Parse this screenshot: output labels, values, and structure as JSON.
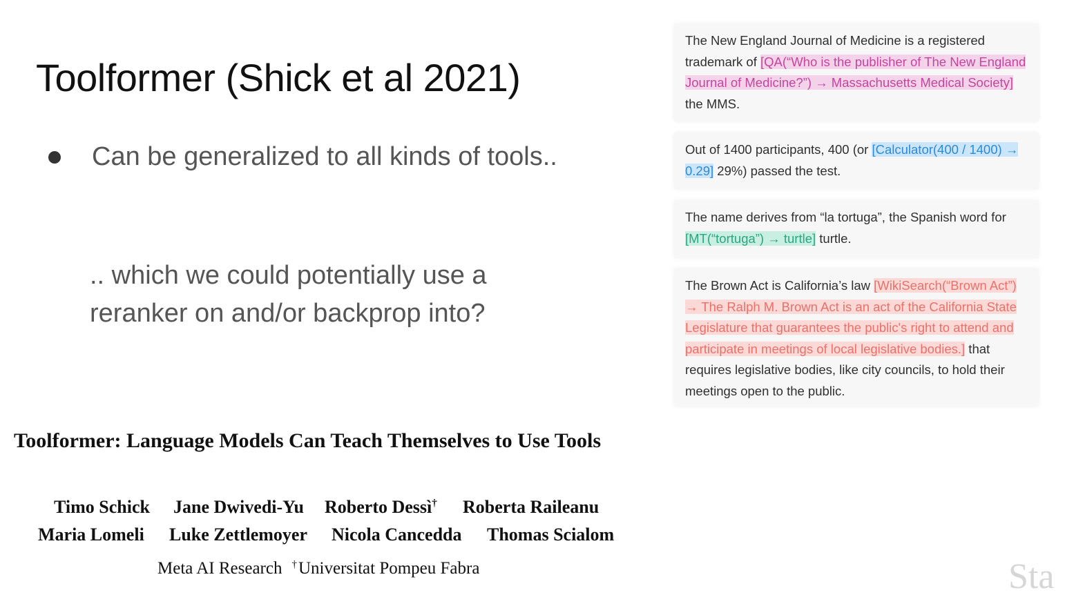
{
  "slide": {
    "title": "Toolformer (Shick et al 2021)",
    "bullet": "Can be generalized to all kinds of tools..",
    "followup_line_1": ".. which we could potentially use a",
    "followup_line_2": "reranker on and/or backprop into?"
  },
  "paper": {
    "title": "Toolformer: Language Models Can Teach Themselves to Use Tools",
    "authors_row_1": [
      "Timo Schick",
      "Jane Dwivedi-Yu",
      "Roberto Dessì",
      "Roberta Raileanu"
    ],
    "authors_row_2": [
      "Maria Lomeli",
      "Luke Zettlemoyer",
      "Nicola Cancedda",
      "Thomas Scialom"
    ],
    "dagger": "†",
    "affiliation_1": "Meta AI Research",
    "affiliation_2": "Universitat Pompeu Fabra"
  },
  "examples": {
    "qa": {
      "before": "The New England Journal of Medicine is a registered trademark of ",
      "call": "[QA(“Who is the publisher of The New England Journal of Medicine?”) → Massachusetts Medical Society]",
      "after": " the MMS.",
      "color": "#c0479c"
    },
    "calc": {
      "before": "Out of 1400 participants, 400 (or ",
      "call": "[Calculator(400 / 1400) → 0.29]",
      "after": " 29%) passed the test.",
      "color": "#2e8ad6"
    },
    "mt": {
      "before": "The name derives from “la tortuga”, the Spanish word for ",
      "call": "[MT(“tortuga”) → turtle]",
      "after": " turtle.",
      "color": "#2aa680"
    },
    "wiki": {
      "before": "The Brown Act is California’s law ",
      "call": "[WikiSearch(“Brown Act”) → The Ralph M. Brown Act is an act of the California State Legislature that guarantees the public's right to attend and participate in meetings of local legislative bodies.]",
      "after": " that requires legislative bodies, like city councils, to hold their meetings open to the public.",
      "color": "#e9716b"
    }
  },
  "watermark": "Sta"
}
